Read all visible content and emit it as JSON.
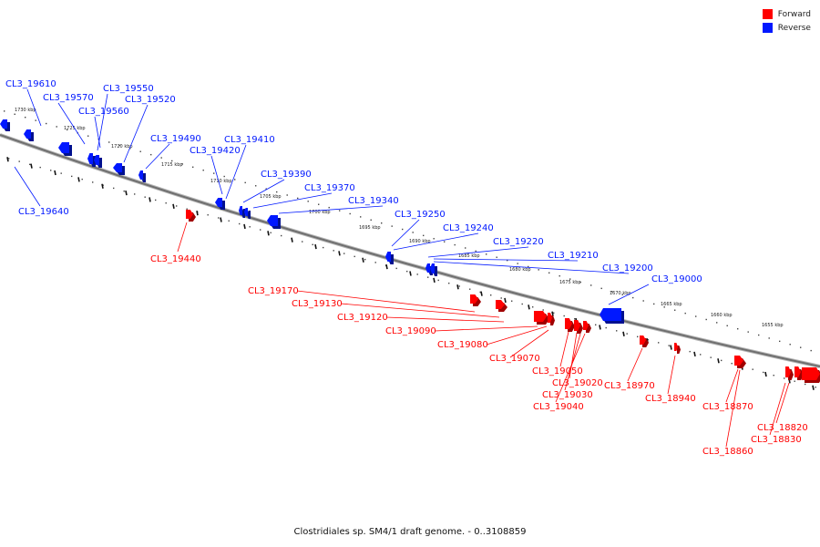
{
  "legend": {
    "forward": {
      "label": "Forward",
      "color": "#ff0000"
    },
    "reverse": {
      "label": "Reverse",
      "color": "#0018ff"
    }
  },
  "caption": "Clostridiales sp. SM4/1 draft genome. - 0..3108859",
  "ruler": {
    "ticks": [
      {
        "label": "1730 kbp"
      },
      {
        "label": "1725 kbp"
      },
      {
        "label": "1720 kbp"
      },
      {
        "label": "1715 kbp"
      },
      {
        "label": "1710 kbp"
      },
      {
        "label": "1705 kbp"
      },
      {
        "label": "1700 kbp"
      },
      {
        "label": "1695 kbp"
      },
      {
        "label": "1690 kbp"
      },
      {
        "label": "1685 kbp"
      },
      {
        "label": "1680 kbp"
      },
      {
        "label": "1675 kbp"
      },
      {
        "label": "1670 kbp"
      },
      {
        "label": "1665 kbp"
      },
      {
        "label": "1660 kbp"
      },
      {
        "label": "1655 kbp"
      }
    ]
  },
  "genes": {
    "reverse": [
      "CL3_19610",
      "CL3_19570",
      "CL3_19560",
      "CL3_19550",
      "CL3_19520",
      "CL3_19490",
      "CL3_19420",
      "CL3_19410",
      "CL3_19390",
      "CL3_19370",
      "CL3_19340",
      "CL3_19250",
      "CL3_19240",
      "CL3_19220",
      "CL3_19210",
      "CL3_19200",
      "CL3_19000",
      "CL3_19640"
    ],
    "forward": [
      "CL3_19440",
      "CL3_19170",
      "CL3_19130",
      "CL3_19120",
      "CL3_19090",
      "CL3_19080",
      "CL3_19070",
      "CL3_19050",
      "CL3_19020",
      "CL3_19030",
      "CL3_19040",
      "CL3_18970",
      "CL3_18940",
      "CL3_18870",
      "CL3_18860",
      "CL3_18820",
      "CL3_18830"
    ]
  }
}
